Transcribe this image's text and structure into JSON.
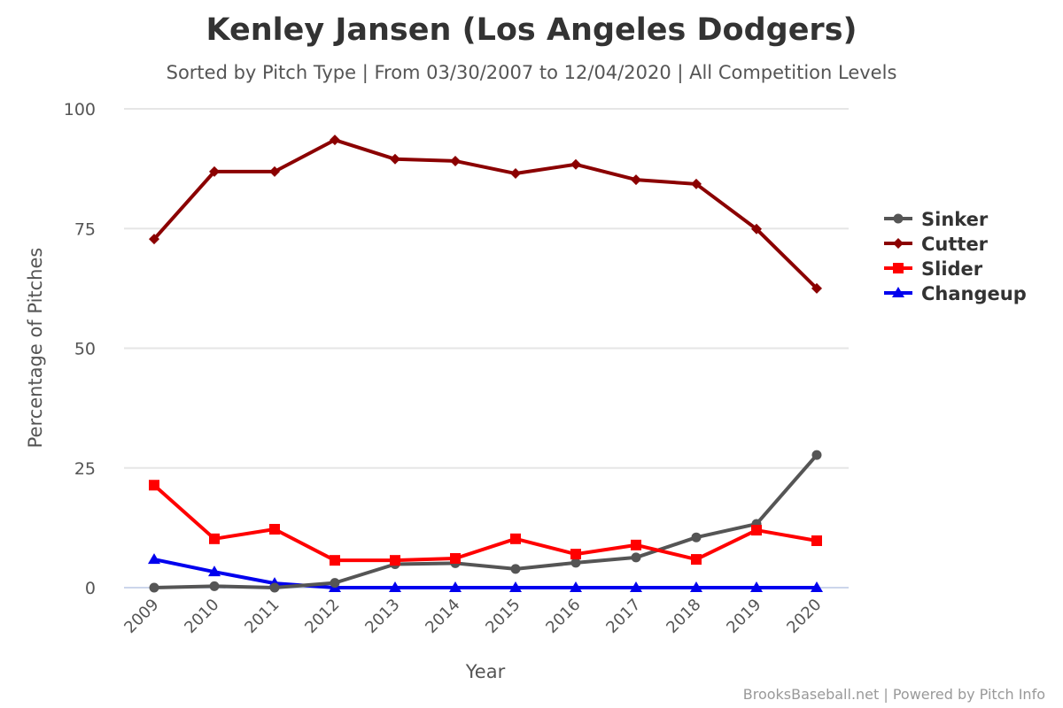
{
  "header": {
    "title": "Kenley Jansen (Los Angeles Dodgers)",
    "subtitle": "Sorted by Pitch Type | From 03/30/2007 to 12/04/2020 | All Competition Levels"
  },
  "credits": "BrooksBaseball.net | Powered by Pitch Info",
  "chart_data": {
    "type": "line",
    "title": "Kenley Jansen (Los Angeles Dodgers)",
    "subtitle": "Sorted by Pitch Type | From 03/30/2007 to 12/04/2020 | All Competition Levels",
    "xlabel": "Year",
    "ylabel": "Percentage of Pitches",
    "categories": [
      "2009",
      "2010",
      "2011",
      "2012",
      "2013",
      "2014",
      "2015",
      "2016",
      "2017",
      "2018",
      "2019",
      "2020"
    ],
    "ylim": [
      0,
      100
    ],
    "yticks": [
      0,
      25,
      50,
      75,
      100
    ],
    "grid": true,
    "legend_position": "right",
    "series": [
      {
        "name": "Sinker",
        "color": "#555555",
        "marker": "circle",
        "values": [
          0.0,
          0.3,
          0.0,
          1.0,
          4.9,
          5.1,
          3.9,
          5.2,
          6.3,
          10.5,
          13.3,
          27.7
        ]
      },
      {
        "name": "Cutter",
        "color": "#8b0000",
        "marker": "diamond",
        "values": [
          72.8,
          86.9,
          86.9,
          93.5,
          89.5,
          89.1,
          86.5,
          88.4,
          85.2,
          84.3,
          74.9,
          62.5
        ]
      },
      {
        "name": "Slider",
        "color": "#ff0000",
        "marker": "square",
        "values": [
          21.4,
          10.2,
          12.2,
          5.7,
          5.7,
          6.1,
          10.2,
          7.0,
          8.9,
          5.9,
          12.0,
          9.8
        ]
      },
      {
        "name": "Changeup",
        "color": "#0000ee",
        "marker": "triangle",
        "values": [
          5.9,
          3.3,
          0.9,
          0.0,
          0.0,
          0.0,
          0.0,
          0.0,
          0.0,
          0.0,
          0.0,
          0.0
        ]
      }
    ]
  }
}
